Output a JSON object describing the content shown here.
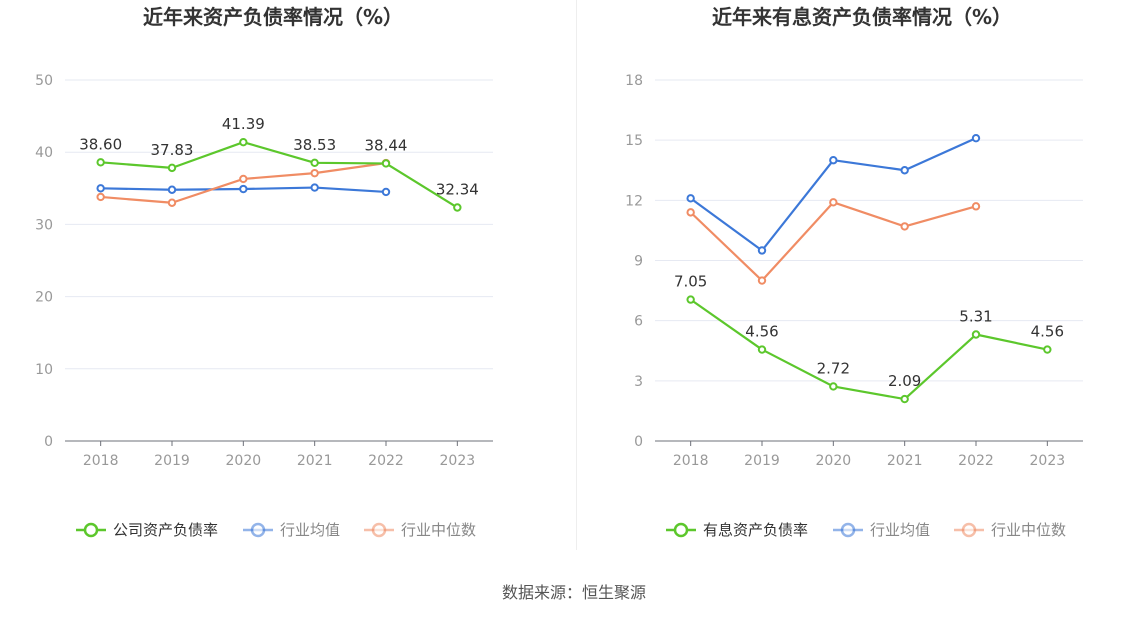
{
  "colors": {
    "company": "#5cc72c",
    "avg": "#3c78d8",
    "median": "#f08c64",
    "grid": "#e6e9f2",
    "axis_text": "#999999",
    "title": "#333333",
    "label": "#333333"
  },
  "chart_data": [
    {
      "type": "line",
      "title": "近年来资产负债率情况（%）",
      "categories": [
        "2018",
        "2019",
        "2020",
        "2021",
        "2022",
        "2023"
      ],
      "ylim": [
        0,
        50
      ],
      "yticks": [
        0,
        10,
        20,
        30,
        40,
        50
      ],
      "grid": true,
      "legend_position": "bottom",
      "series": [
        {
          "name": "公司资产负债率",
          "key": "company",
          "values": [
            38.6,
            37.83,
            41.39,
            38.53,
            38.44,
            32.34
          ],
          "labels": [
            "38.60",
            "37.83",
            "41.39",
            "38.53",
            "38.44",
            "32.34"
          ]
        },
        {
          "name": "行业均值",
          "key": "avg",
          "values": [
            35.0,
            34.8,
            34.9,
            35.1,
            34.5,
            null
          ]
        },
        {
          "name": "行业中位数",
          "key": "median",
          "values": [
            33.8,
            33.0,
            36.3,
            37.1,
            38.5,
            null
          ]
        }
      ]
    },
    {
      "type": "line",
      "title": "近年来有息资产负债率情况（%）",
      "categories": [
        "2018",
        "2019",
        "2020",
        "2021",
        "2022",
        "2023"
      ],
      "ylim": [
        0,
        18
      ],
      "yticks": [
        0,
        3,
        6,
        9,
        12,
        15,
        18
      ],
      "grid": true,
      "legend_position": "bottom",
      "series": [
        {
          "name": "有息资产负债率",
          "key": "company",
          "values": [
            7.05,
            4.56,
            2.72,
            2.09,
            5.31,
            4.56
          ],
          "labels": [
            "7.05",
            "4.56",
            "2.72",
            "2.09",
            "5.31",
            "4.56"
          ]
        },
        {
          "name": "行业均值",
          "key": "avg",
          "values": [
            12.1,
            9.5,
            14.0,
            13.5,
            15.1,
            null
          ]
        },
        {
          "name": "行业中位数",
          "key": "median",
          "values": [
            11.4,
            8.0,
            11.9,
            10.7,
            11.7,
            null
          ]
        }
      ]
    }
  ],
  "source_text": "数据来源：恒生聚源"
}
